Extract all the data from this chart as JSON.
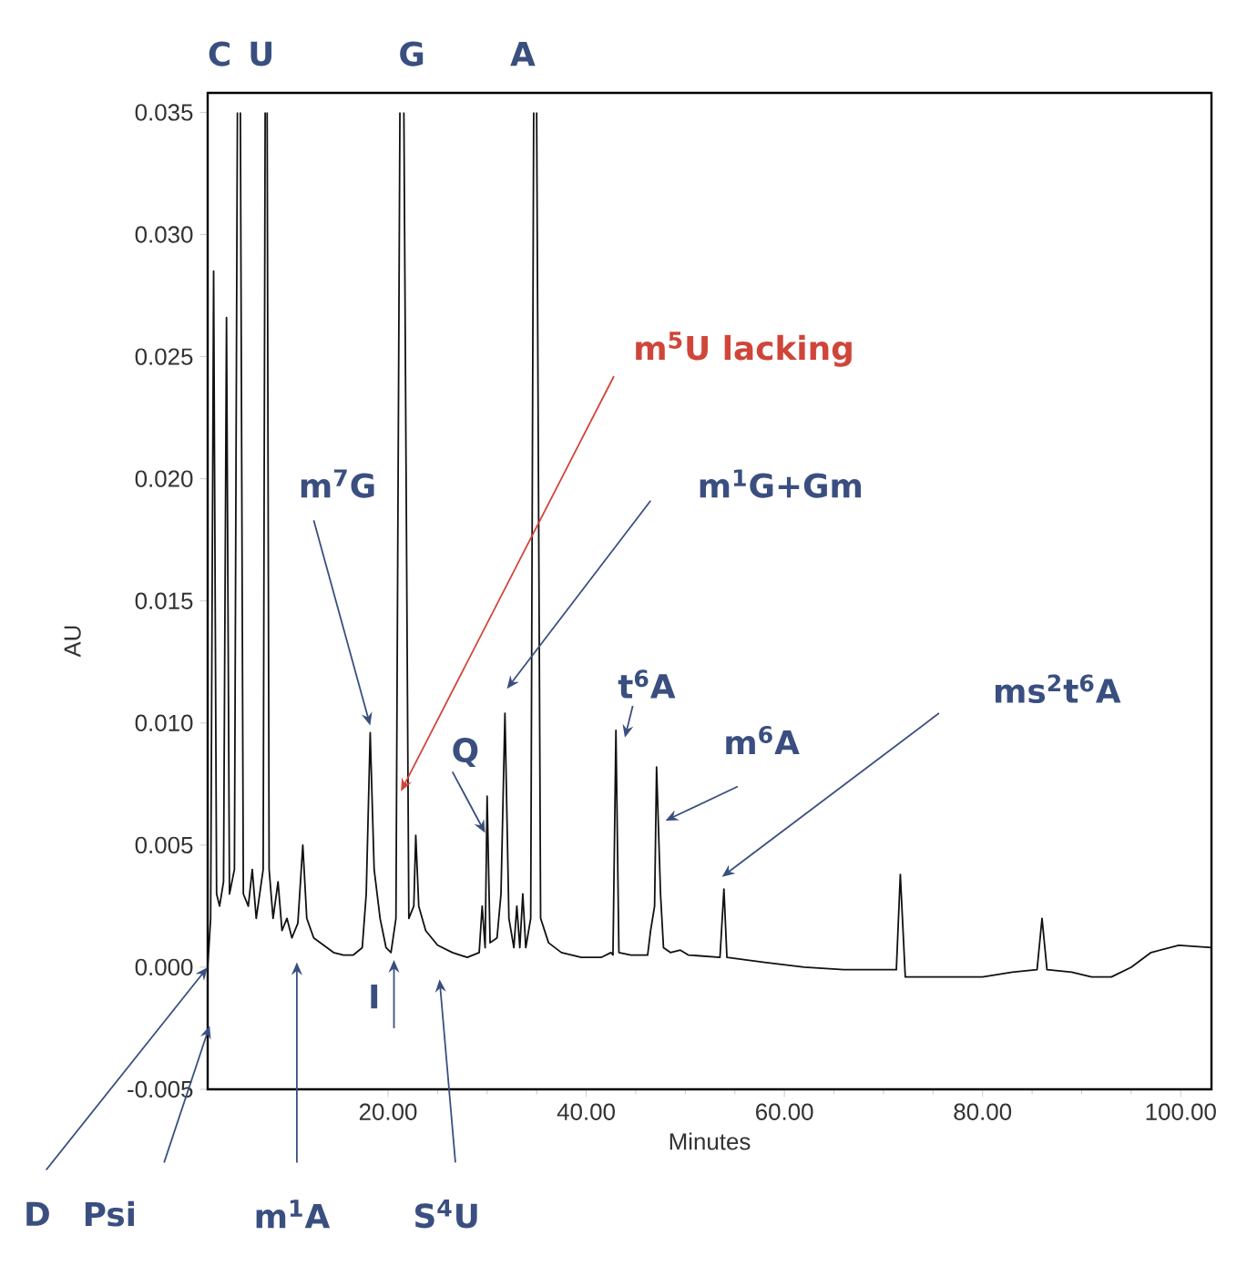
{
  "chart_data": {
    "type": "line",
    "xlabel": "Minutes",
    "ylabel": "AU",
    "xlim": [
      1.8,
      103.1
    ],
    "ylim": [
      -0.005,
      0.0358
    ],
    "xticks": [
      {
        "value": 20,
        "label": "20.00"
      },
      {
        "value": 40,
        "label": "40.00"
      },
      {
        "value": 60,
        "label": "60.00"
      },
      {
        "value": 80,
        "label": "80.00"
      },
      {
        "value": 100,
        "label": "100.00"
      }
    ],
    "yticks": [
      {
        "value": -0.005,
        "label": "-0.005"
      },
      {
        "value": 0,
        "label": "0.000"
      },
      {
        "value": 0.005,
        "label": "0.005"
      },
      {
        "value": 0.01,
        "label": "0.010"
      },
      {
        "value": 0.015,
        "label": "0.015"
      },
      {
        "value": 0.02,
        "label": "0.020"
      },
      {
        "value": 0.025,
        "label": "0.025"
      },
      {
        "value": 0.03,
        "label": "0.030"
      },
      {
        "value": 0.035,
        "label": "0.035"
      }
    ],
    "series": [
      {
        "color": "#111111",
        "x": [
          1.8,
          2.1,
          2.4,
          2.7,
          3.0,
          3.4,
          3.7,
          4.0,
          4.5,
          4.8,
          4.95,
          5.1,
          5.4,
          5.9,
          6.3,
          6.7,
          7.4,
          7.6,
          7.7,
          7.8,
          8.0,
          8.4,
          8.9,
          9.3,
          9.8,
          10.3,
          10.9,
          11.4,
          11.8,
          12.5,
          13.5,
          14.5,
          15.5,
          16.5,
          17.4,
          17.8,
          18.2,
          18.6,
          19.2,
          19.8,
          20.3,
          20.8,
          21.2,
          21.4,
          21.6,
          22.1,
          22.6,
          22.8,
          23.1,
          23.8,
          25,
          26.5,
          28,
          29.2,
          29.5,
          29.8,
          30.0,
          30.3,
          31.0,
          31.4,
          31.8,
          32.2,
          32.7,
          33.0,
          33.3,
          33.6,
          33.9,
          34.4,
          34.7,
          34.85,
          35.0,
          35.4,
          36.2,
          37.5,
          39.5,
          41.5,
          42.5,
          42.7,
          43.0,
          43.3,
          44.5,
          46.2,
          46.5,
          46.9,
          47.1,
          47.5,
          47.8,
          48.5,
          49.5,
          50.3,
          53.5,
          53.9,
          54.2,
          58,
          62,
          66,
          71.3,
          71.7,
          72.2,
          76,
          80,
          83,
          85.5,
          86.0,
          86.5,
          89,
          91,
          93,
          95,
          97,
          99.8,
          103.1
        ],
        "values": [
          0.0,
          0.002,
          0.0285,
          0.003,
          0.0025,
          0.0035,
          0.0266,
          0.003,
          0.004,
          0.035,
          null,
          0.035,
          0.003,
          0.0025,
          0.004,
          0.002,
          0.004,
          0.035,
          null,
          0.035,
          0.004,
          0.002,
          0.0035,
          0.0015,
          0.002,
          0.0012,
          0.0018,
          0.005,
          0.002,
          0.0012,
          0.0009,
          0.0006,
          0.0005,
          0.0005,
          0.0008,
          0.003,
          0.0096,
          0.004,
          0.002,
          0.0008,
          0.0006,
          0.002,
          0.035,
          null,
          0.035,
          0.002,
          0.0025,
          0.0054,
          0.0025,
          0.0015,
          0.0009,
          0.0006,
          0.0004,
          0.0006,
          0.0025,
          0.0008,
          0.007,
          0.001,
          0.0012,
          0.003,
          0.0104,
          0.002,
          0.0008,
          0.0025,
          0.0008,
          0.003,
          0.0008,
          0.002,
          0.035,
          null,
          0.035,
          0.002,
          0.001,
          0.0006,
          0.0004,
          0.0004,
          0.0006,
          0.0005,
          0.0097,
          0.0006,
          0.0005,
          0.0005,
          0.0015,
          0.0025,
          0.0082,
          0.003,
          0.0008,
          0.0006,
          0.0007,
          0.0005,
          0.0004,
          0.0032,
          0.0004,
          0.0002,
          0.0,
          -0.0001,
          -0.0001,
          0.0038,
          -0.0004,
          -0.0004,
          -0.0004,
          -0.0002,
          -0.0001,
          0.002,
          -0.0001,
          -0.0002,
          -0.0004,
          -0.0004,
          0.0,
          0.0006,
          0.0009,
          0.0008
        ]
      }
    ],
    "annotations": [
      "C",
      "U",
      "G",
      "A",
      {
        "text": "m$^{5}$U lacking",
        "x": 21.3,
        "y": 0.0072
      },
      {
        "text": "m$^{7}$G",
        "x": 18.2,
        "y": 0.0099
      },
      "m$^{1}$G+Gm",
      {
        "text": "Q",
        "x": 29.8,
        "y": 0.0055
      },
      {
        "text": "t$^{6}$A",
        "x": 43.9,
        "y": 0.0094
      },
      {
        "text": "m$^{6}$A",
        "x": 48.0,
        "y": 0.006
      },
      "ms$^{2}$t$^{6}$A",
      {
        "text": "D",
        "x": 1.8,
        "y": 0.0
      },
      "Psi",
      "m$^{1}$A",
      "S$^{4}$U",
      {
        "text": "I",
        "x": 20.6,
        "y": 0.0003
      }
    ]
  }
}
